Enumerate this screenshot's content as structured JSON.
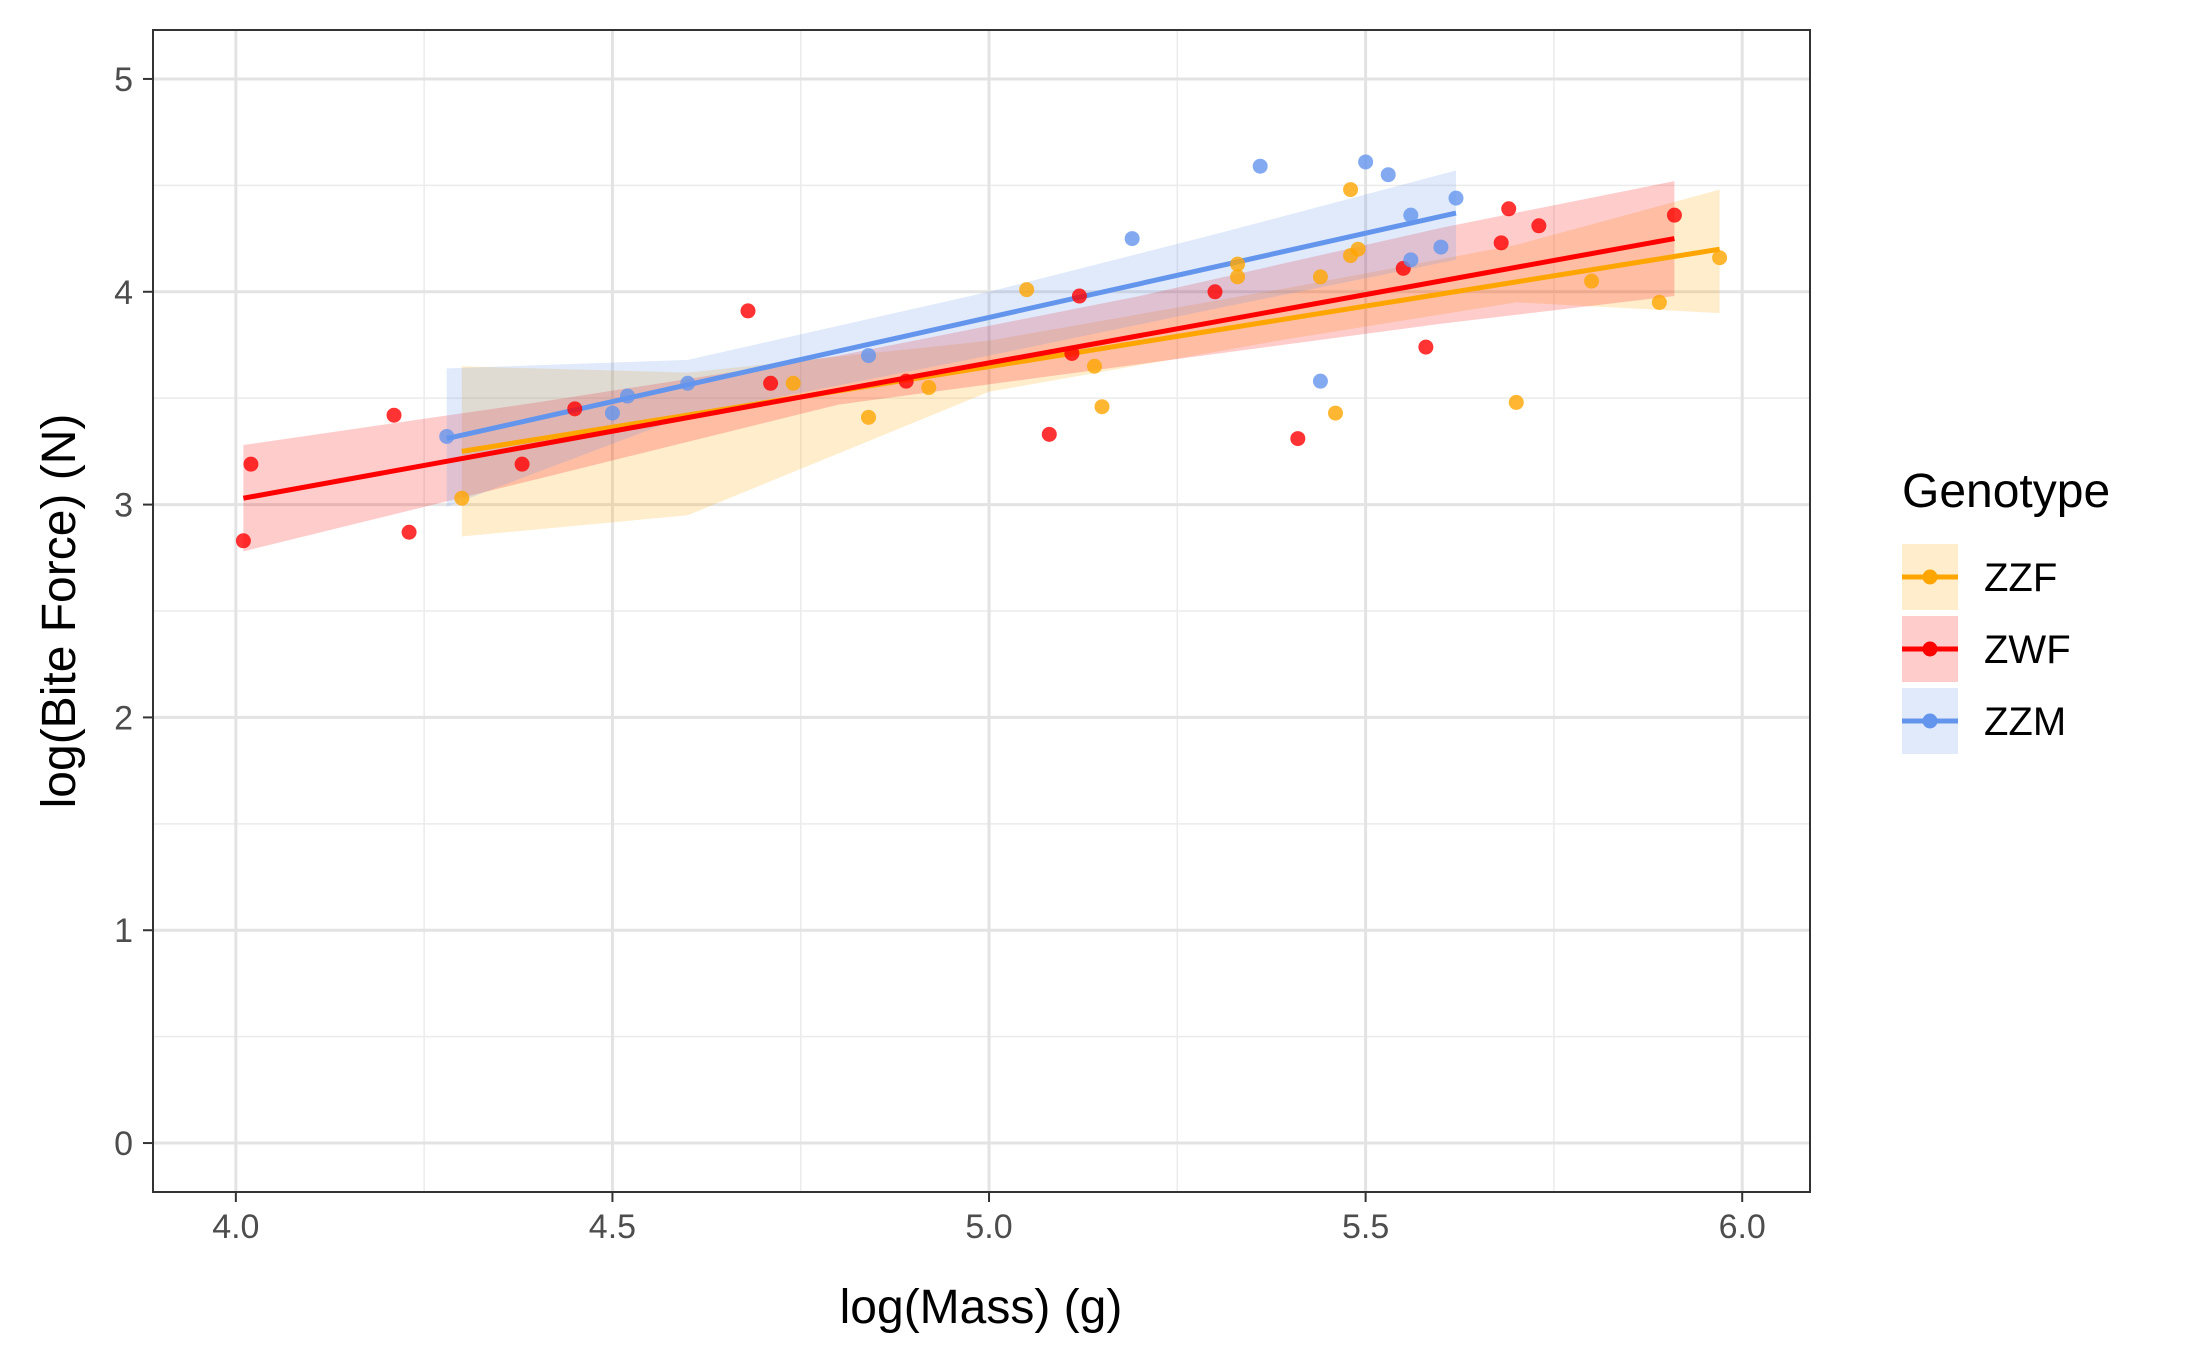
{
  "chart_data": {
    "type": "scatter",
    "xlabel": "log(Mass) (g)",
    "ylabel": "log(Bite Force) (N)",
    "xlim": [
      3.89,
      6.09
    ],
    "ylim": [
      -0.23,
      5.23
    ],
    "x_ticks": [
      4.0,
      4.5,
      5.0,
      5.5,
      6.0
    ],
    "x_tick_labels": [
      "4.0",
      "4.5",
      "5.0",
      "5.5",
      "6.0"
    ],
    "y_ticks": [
      0,
      1,
      2,
      3,
      4,
      5
    ],
    "y_tick_labels": [
      "0",
      "1",
      "2",
      "3",
      "4",
      "5"
    ],
    "grid": true,
    "legend": {
      "title": "Genotype",
      "position": "right"
    },
    "series": [
      {
        "name": "ZZF",
        "color": "#FFA500",
        "points": [
          [
            4.3,
            3.03
          ],
          [
            4.74,
            3.57
          ],
          [
            4.84,
            3.41
          ],
          [
            4.92,
            3.55
          ],
          [
            5.05,
            4.01
          ],
          [
            5.14,
            3.65
          ],
          [
            5.15,
            3.46
          ],
          [
            5.33,
            4.13
          ],
          [
            5.33,
            4.07
          ],
          [
            5.44,
            4.07
          ],
          [
            5.46,
            3.43
          ],
          [
            5.48,
            4.17
          ],
          [
            5.48,
            4.48
          ],
          [
            5.49,
            4.2
          ],
          [
            5.7,
            3.48
          ],
          [
            5.8,
            4.05
          ],
          [
            5.89,
            3.95
          ],
          [
            5.97,
            4.16
          ]
        ],
        "fit": {
          "x": [
            4.3,
            5.97
          ],
          "y": [
            3.25,
            4.2
          ]
        },
        "ci": {
          "x": [
            4.3,
            4.6,
            5.0,
            5.4,
            5.7,
            5.97
          ],
          "upper": [
            3.65,
            3.62,
            3.77,
            4.02,
            4.22,
            4.48
          ],
          "lower": [
            2.85,
            2.95,
            3.53,
            3.78,
            3.95,
            3.9
          ]
        }
      },
      {
        "name": "ZWF",
        "color": "#FF0000",
        "points": [
          [
            4.01,
            2.83
          ],
          [
            4.02,
            3.19
          ],
          [
            4.21,
            3.42
          ],
          [
            4.23,
            2.87
          ],
          [
            4.38,
            3.19
          ],
          [
            4.45,
            3.45
          ],
          [
            4.68,
            3.91
          ],
          [
            4.71,
            3.57
          ],
          [
            4.89,
            3.58
          ],
          [
            5.08,
            3.33
          ],
          [
            5.11,
            3.71
          ],
          [
            5.12,
            3.98
          ],
          [
            5.3,
            4.0
          ],
          [
            5.41,
            3.31
          ],
          [
            5.55,
            4.11
          ],
          [
            5.58,
            3.74
          ],
          [
            5.68,
            4.23
          ],
          [
            5.69,
            4.39
          ],
          [
            5.73,
            4.31
          ],
          [
            5.91,
            4.36
          ]
        ],
        "fit": {
          "x": [
            4.01,
            5.91
          ],
          "y": [
            3.03,
            4.25
          ]
        },
        "ci": {
          "x": [
            4.01,
            4.4,
            4.8,
            5.2,
            5.6,
            5.91
          ],
          "upper": [
            3.28,
            3.48,
            3.7,
            3.98,
            4.3,
            4.52
          ],
          "lower": [
            2.78,
            3.12,
            3.47,
            3.66,
            3.85,
            3.98
          ]
        }
      },
      {
        "name": "ZZM",
        "color": "#6495ED",
        "points": [
          [
            4.28,
            3.32
          ],
          [
            4.5,
            3.43
          ],
          [
            4.52,
            3.51
          ],
          [
            4.6,
            3.57
          ],
          [
            4.84,
            3.7
          ],
          [
            5.19,
            4.25
          ],
          [
            5.36,
            4.59
          ],
          [
            5.44,
            3.58
          ],
          [
            5.5,
            4.61
          ],
          [
            5.53,
            4.55
          ],
          [
            5.56,
            4.15
          ],
          [
            5.56,
            4.36
          ],
          [
            5.6,
            4.21
          ],
          [
            5.62,
            4.44
          ]
        ],
        "fit": {
          "x": [
            4.28,
            5.62
          ],
          "y": [
            3.31,
            4.37
          ]
        },
        "ci": {
          "x": [
            4.28,
            4.6,
            5.0,
            5.3,
            5.62
          ],
          "upper": [
            3.64,
            3.68,
            4.0,
            4.27,
            4.57
          ],
          "lower": [
            2.99,
            3.42,
            3.7,
            3.92,
            4.15
          ]
        }
      }
    ]
  }
}
